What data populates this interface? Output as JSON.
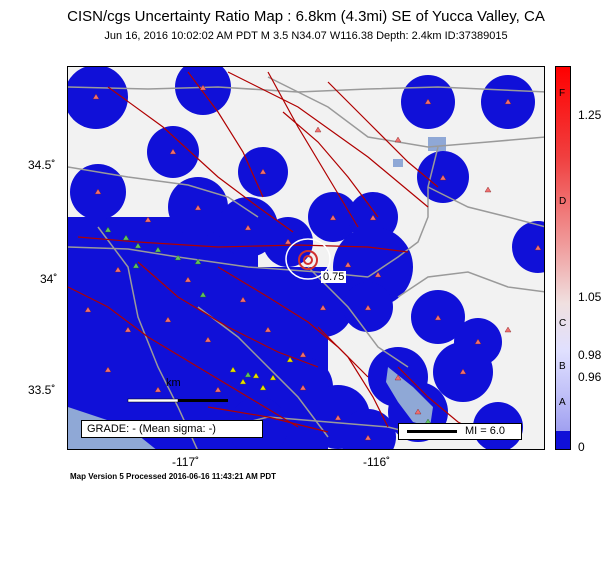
{
  "header": {
    "title": "CISN/cgs Uncertainty Ratio Map : 6.8km (4.3mi) SE of Yucca Valley, CA",
    "subtitle": "Jun 16, 2016 10:02:02 AM PDT   M 3.5   N34.07 W116.38   Depth: 2.4km   ID:37389015"
  },
  "map": {
    "lat_labels": [
      "34.5˚",
      "34˚",
      "33.5˚"
    ],
    "lon_labels": [
      "-117˚",
      "-116˚"
    ],
    "contour_label": "0.75",
    "scalebar_label": "km",
    "grade_text": "GRADE: - (Mean sigma: -)",
    "mi_text": "MI = 6.0",
    "colors": {
      "land": "#f2f2f2",
      "blue": "#1010d8",
      "water": "#8fa8d6",
      "faults": "#b00000",
      "stations_red": "#f07070",
      "stations_green": "#60c060",
      "stations_yellow": "#e8e000"
    }
  },
  "colorscale": {
    "value_labels": [
      "1.25",
      "1.05",
      "0.98",
      "0.96",
      "0"
    ],
    "grade_labels": [
      "F",
      "D",
      "C",
      "B",
      "A"
    ]
  },
  "footer": "Map Version 5 Processed 2016-06-16 11:43:21 AM PDT"
}
